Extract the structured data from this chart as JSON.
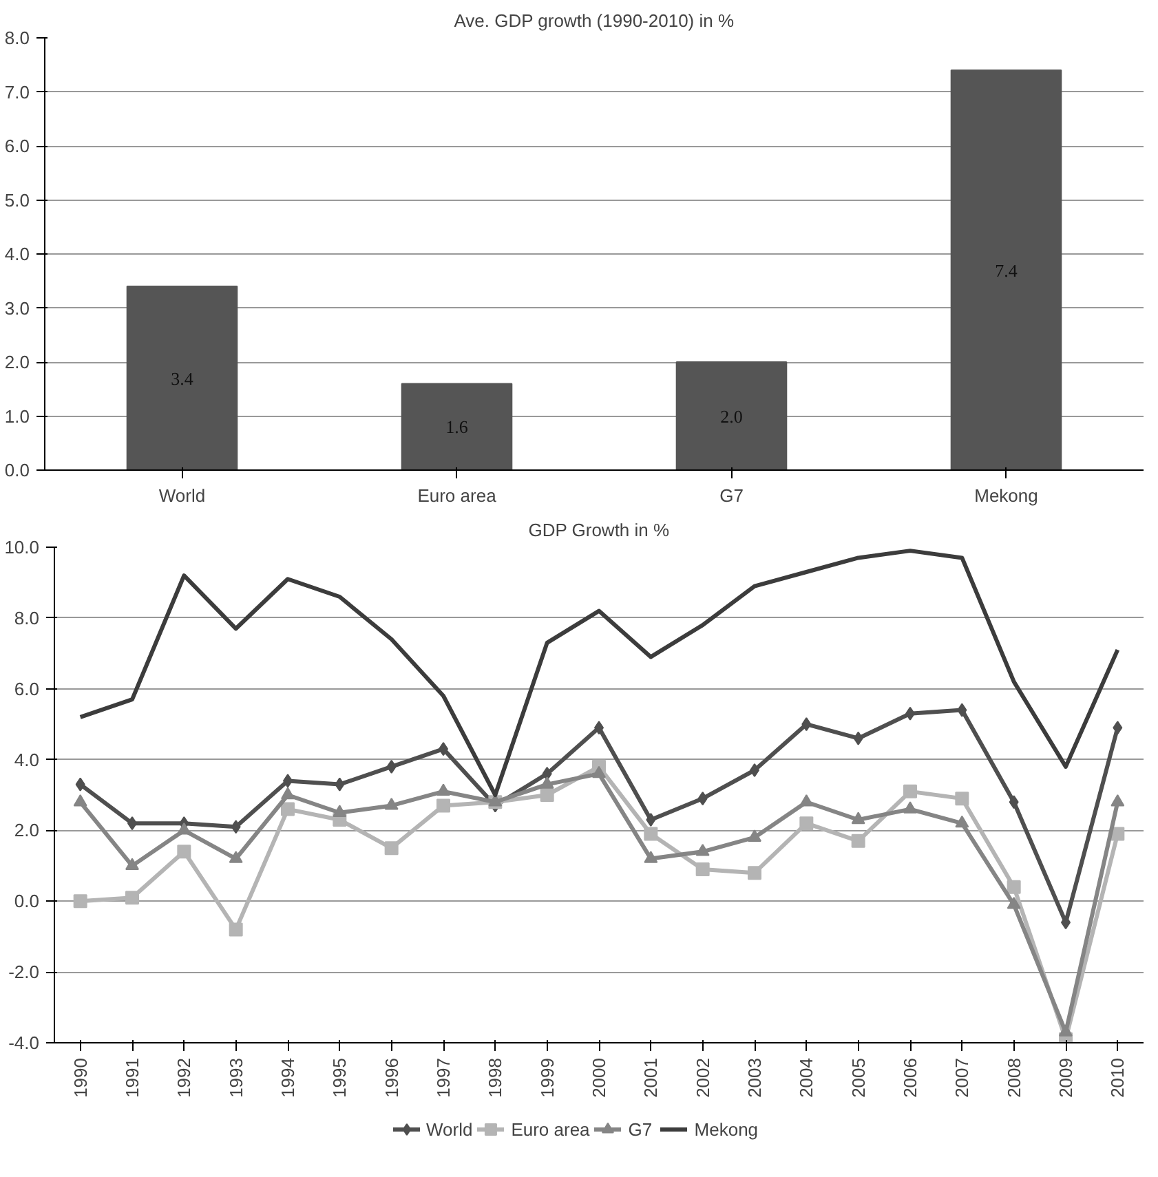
{
  "chart_data": [
    {
      "type": "bar",
      "title": "Ave. GDP growth (1990-2010) in %",
      "categories": [
        "World",
        "Euro area",
        "G7",
        "Mekong"
      ],
      "values": [
        3.4,
        1.6,
        2.0,
        7.4
      ],
      "color": "#555555",
      "value_labels": [
        "3.4",
        "1.6",
        "2.0",
        "7.4"
      ],
      "ylim": [
        0,
        8
      ],
      "yticks": [
        {
          "value": 0,
          "label": "0.0"
        },
        {
          "value": 1,
          "label": "1.0"
        },
        {
          "value": 2,
          "label": "2.0"
        },
        {
          "value": 3,
          "label": "3.0"
        },
        {
          "value": 4,
          "label": "4.0"
        },
        {
          "value": 5,
          "label": "5.0"
        },
        {
          "value": 6,
          "label": "6.0"
        },
        {
          "value": 7,
          "label": "7.0"
        },
        {
          "value": 8,
          "label": "8.0"
        }
      ],
      "grid": "y"
    },
    {
      "type": "line",
      "title": "GDP Growth in %",
      "categories": [
        "1990",
        "1991",
        "1992",
        "1993",
        "1994",
        "1995",
        "1996",
        "1997",
        "1998",
        "1999",
        "2000",
        "2001",
        "2002",
        "2003",
        "2004",
        "2005",
        "2006",
        "2007",
        "2008",
        "2009",
        "2010"
      ],
      "series": [
        {
          "name": "World",
          "color": "#4f4f4f",
          "marker": "diamond",
          "values": [
            3.3,
            2.2,
            2.2,
            2.1,
            3.4,
            3.3,
            3.8,
            4.3,
            2.7,
            3.6,
            4.9,
            2.3,
            2.9,
            3.7,
            5.0,
            4.6,
            5.3,
            5.4,
            2.8,
            -0.6,
            4.9
          ]
        },
        {
          "name": "Euro area",
          "color": "#b4b4b4",
          "marker": "square",
          "values": [
            0.0,
            0.1,
            1.4,
            -0.8,
            2.6,
            2.3,
            1.5,
            2.7,
            2.8,
            3.0,
            3.8,
            1.9,
            0.9,
            0.8,
            2.2,
            1.7,
            3.1,
            2.9,
            0.4,
            -3.9,
            1.9
          ]
        },
        {
          "name": "G7",
          "color": "#858585",
          "marker": "triangle",
          "values": [
            2.8,
            1.0,
            2.0,
            1.2,
            3.0,
            2.5,
            2.7,
            3.1,
            2.8,
            3.3,
            3.6,
            1.2,
            1.4,
            1.8,
            2.8,
            2.3,
            2.6,
            2.2,
            -0.1,
            -3.7,
            2.8
          ]
        },
        {
          "name": "Mekong",
          "color": "#3c3c3c",
          "marker": "none",
          "values": [
            5.2,
            5.7,
            9.2,
            7.7,
            9.1,
            8.6,
            7.4,
            5.8,
            3.0,
            7.3,
            8.2,
            6.9,
            7.8,
            8.9,
            9.3,
            9.7,
            9.9,
            9.7,
            6.2,
            3.8,
            7.1
          ]
        }
      ],
      "ylim": [
        -4,
        10
      ],
      "yticks": [
        {
          "value": -4,
          "label": "-4.0"
        },
        {
          "value": -2,
          "label": "-2.0"
        },
        {
          "value": 0,
          "label": "0.0"
        },
        {
          "value": 2,
          "label": "2.0"
        },
        {
          "value": 4,
          "label": "4.0"
        },
        {
          "value": 6,
          "label": "6.0"
        },
        {
          "value": 8,
          "label": "8.0"
        },
        {
          "value": 10,
          "label": "10.0"
        }
      ],
      "grid": "y",
      "legend": "bottom"
    }
  ]
}
